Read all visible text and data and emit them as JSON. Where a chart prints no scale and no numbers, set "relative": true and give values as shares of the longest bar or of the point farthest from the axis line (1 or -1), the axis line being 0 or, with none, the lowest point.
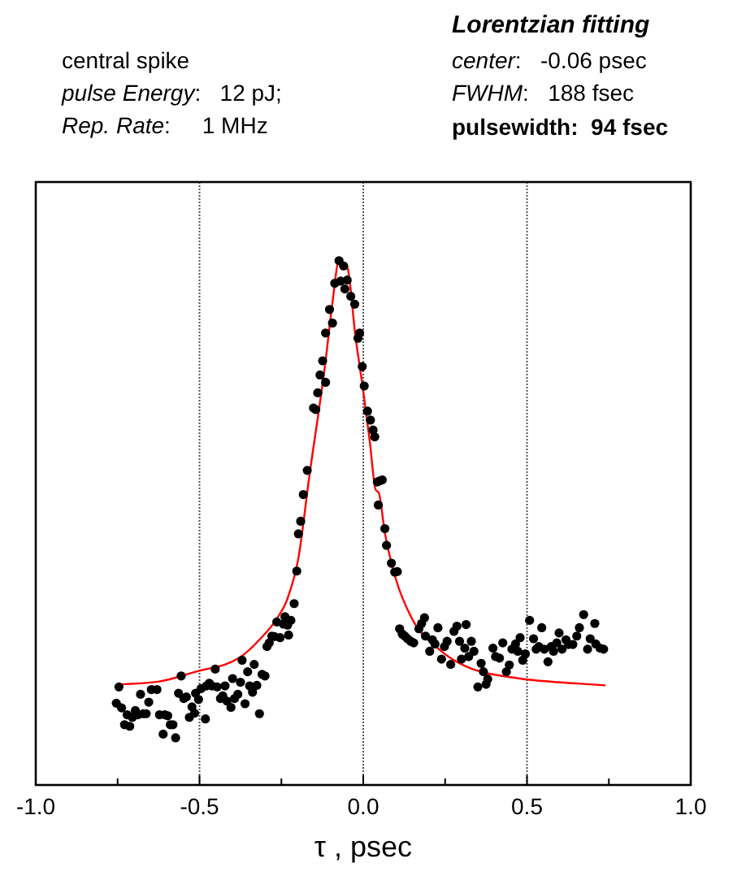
{
  "chart_data": {
    "type": "scatter",
    "relative": true,
    "xlabel": "τ , psec",
    "xlim": [
      -1.0,
      1.0
    ],
    "xticks": [
      {
        "value": -1.0,
        "label": "-1.0"
      },
      {
        "value": -0.75,
        "label": null
      },
      {
        "value": -0.5,
        "label": "-0.5"
      },
      {
        "value": -0.25,
        "label": null
      },
      {
        "value": 0.0,
        "label": "0.0"
      },
      {
        "value": 0.25,
        "label": null
      },
      {
        "value": 0.5,
        "label": "0.5"
      },
      {
        "value": 0.75,
        "label": null
      },
      {
        "value": 1.0,
        "label": "1.0"
      }
    ],
    "grid": "x",
    "annotations": [
      "central spike",
      "pulse Energy:   12 pJ;",
      "Rep. Rate:     1 MHz",
      "Lorentzian fitting",
      "center:   -0.06 psec",
      "FWHM:   188 fsec",
      "pulsewidth:  94 fsec"
    ],
    "series": [
      {
        "marker": "circle",
        "color": "#000000",
        "x": [
          -0.746,
          -0.754,
          -0.738,
          -0.729,
          -0.713,
          -0.721,
          -0.705,
          -0.696,
          -0.688,
          -0.68,
          -0.672,
          -0.663,
          -0.655,
          -0.647,
          -0.63,
          -0.622,
          -0.606,
          -0.611,
          -0.597,
          -0.589,
          -0.581,
          -0.573,
          -0.564,
          -0.556,
          -0.548,
          -0.54,
          -0.531,
          -0.523,
          -0.515,
          -0.512,
          -0.503,
          -0.495,
          -0.482,
          -0.479,
          -0.47,
          -0.462,
          -0.452,
          -0.446,
          -0.436,
          -0.429,
          -0.422,
          -0.416,
          -0.404,
          -0.399,
          -0.393,
          -0.383,
          -0.375,
          -0.37,
          -0.361,
          -0.353,
          -0.347,
          -0.338,
          -0.333,
          -0.325,
          -0.317,
          -0.309,
          -0.3,
          -0.294,
          -0.287,
          -0.279,
          -0.271,
          -0.264,
          -0.254,
          -0.244,
          -0.239,
          -0.231,
          -0.228,
          -0.221,
          -0.211,
          -0.203,
          -0.198,
          -0.191,
          -0.183,
          -0.171,
          -0.152,
          -0.145,
          -0.139,
          -0.132,
          -0.124,
          -0.115,
          -0.115,
          -0.103,
          -0.094,
          -0.087,
          -0.074,
          -0.069,
          -0.06,
          -0.056,
          -0.049,
          -0.038,
          -0.026,
          -0.016,
          -0.011,
          -0.003,
          0.003,
          0.013,
          0.022,
          0.03,
          0.035,
          0.043,
          0.046,
          0.05,
          0.058,
          0.066,
          0.071,
          0.086,
          0.096,
          0.104,
          0.111,
          0.119,
          0.127,
          0.135,
          0.145,
          0.154,
          0.17,
          0.178,
          0.187,
          0.19,
          0.203,
          0.211,
          0.219,
          0.228,
          0.239,
          0.248,
          0.256,
          0.267,
          0.277,
          0.286,
          0.294,
          0.3,
          0.31,
          0.314,
          0.322,
          0.33,
          0.338,
          0.35,
          0.36,
          0.367,
          0.375,
          0.38,
          0.396,
          0.404,
          0.416,
          0.426,
          0.437,
          0.446,
          0.454,
          0.465,
          0.472,
          0.479,
          0.487,
          0.495,
          0.508,
          0.52,
          0.528,
          0.536,
          0.545,
          0.553,
          0.564,
          0.574,
          0.581,
          0.591,
          0.598,
          0.607,
          0.619,
          0.627,
          0.64,
          0.652,
          0.66,
          0.673,
          0.685,
          0.693,
          0.707,
          0.71,
          0.723,
          0.734
        ],
        "values": [
          0.187,
          0.156,
          0.147,
          0.115,
          0.112,
          0.134,
          0.129,
          0.142,
          0.134,
          0.173,
          0.136,
          0.136,
          0.158,
          0.182,
          0.182,
          0.134,
          0.134,
          0.097,
          0.132,
          0.115,
          0.115,
          0.09,
          0.175,
          0.208,
          0.165,
          0.168,
          0.129,
          0.149,
          0.137,
          0.175,
          0.163,
          0.184,
          0.126,
          0.189,
          0.194,
          0.189,
          0.221,
          0.187,
          0.165,
          0.17,
          0.189,
          0.16,
          0.148,
          0.203,
          0.165,
          0.173,
          0.196,
          0.238,
          0.155,
          0.216,
          0.189,
          0.177,
          0.23,
          0.19,
          0.136,
          0.211,
          0.208,
          0.264,
          0.271,
          0.284,
          0.283,
          0.311,
          0.281,
          0.307,
          0.321,
          0.305,
          0.286,
          0.314,
          0.346,
          0.408,
          0.479,
          0.503,
          0.554,
          0.6,
          0.719,
          0.716,
          0.748,
          0.782,
          0.809,
          0.768,
          0.862,
          0.907,
          0.881,
          0.957,
          1,
          0.961,
          0.99,
          0.946,
          0.963,
          0.932,
          0.917,
          0.852,
          0.862,
          0.798,
          0.761,
          0.713,
          0.696,
          0.677,
          0.664,
          0.578,
          0.534,
          0.58,
          0.582,
          0.489,
          0.457,
          0.423,
          0.406,
          0.407,
          0.298,
          0.288,
          0.284,
          0.279,
          0.274,
          0.271,
          0.298,
          0.308,
          0.319,
          0.284,
          0.255,
          0.277,
          0.269,
          0.3,
          0.24,
          0.264,
          0.274,
          0.23,
          0.293,
          0.303,
          0.274,
          0.24,
          0.261,
          0.306,
          0.245,
          0.274,
          0.255,
          0.187,
          0.232,
          0.216,
          0.192,
          0.202,
          0.261,
          0.245,
          0.242,
          0.271,
          0.216,
          0.229,
          0.259,
          0.269,
          0.255,
          0.281,
          0.238,
          0.25,
          0.314,
          0.279,
          0.259,
          0.264,
          0.3,
          0.259,
          0.235,
          0.264,
          0.255,
          0.271,
          0.29,
          0.259,
          0.277,
          0.268,
          0.268,
          0.284,
          0.3,
          0.325,
          0.259,
          0.279,
          0.308,
          0.269,
          0.261,
          0.259
        ]
      },
      {
        "type": "line",
        "marker": "none",
        "color": "#ff0000",
        "x": [
          -0.746,
          -0.627,
          -0.512,
          -0.38,
          -0.314,
          -0.264,
          -0.231,
          -0.198,
          -0.165,
          -0.115,
          -0.094,
          -0.074,
          -0.049,
          -0.024,
          0.0,
          0.02,
          0.038,
          0.047,
          0.066,
          0.099,
          0.149,
          0.231,
          0.314,
          0.479,
          0.644,
          0.74
        ],
        "values": [
          0.192,
          0.197,
          0.216,
          0.242,
          0.279,
          0.317,
          0.356,
          0.433,
          0.587,
          0.809,
          0.92,
          1,
          0.988,
          0.857,
          0.751,
          0.655,
          0.563,
          0.558,
          0.481,
          0.394,
          0.317,
          0.259,
          0.226,
          0.203,
          0.194,
          0.19
        ]
      }
    ]
  }
}
